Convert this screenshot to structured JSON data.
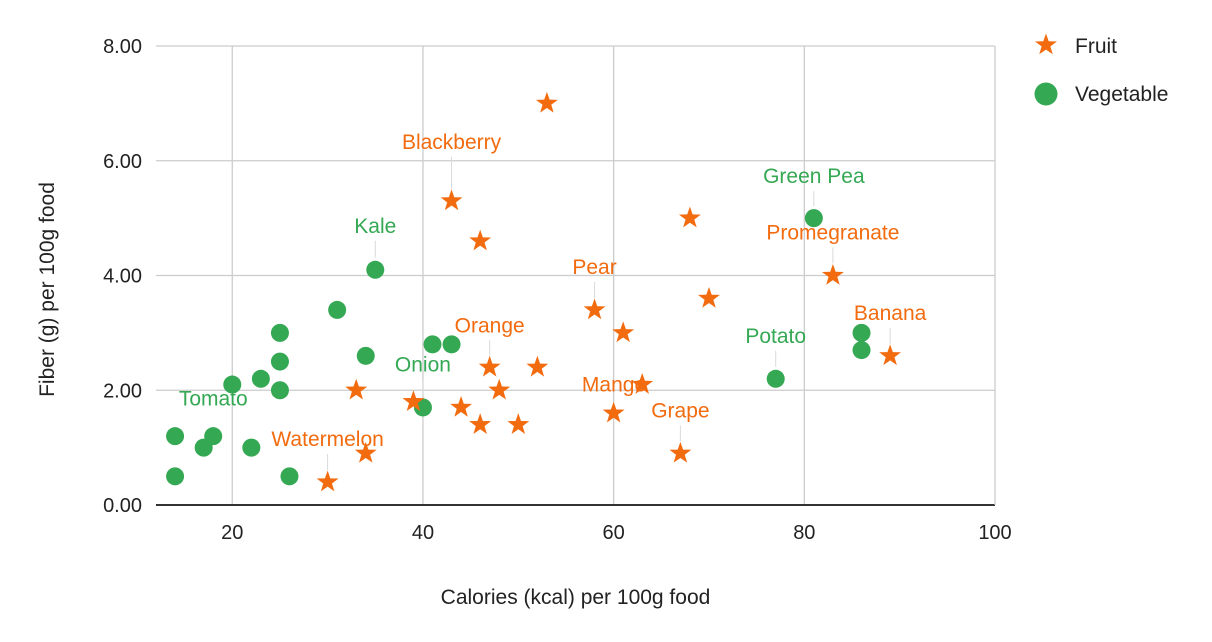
{
  "chart_data": {
    "type": "scatter",
    "title": "",
    "xlabel": "Calories (kcal) per 100g food",
    "ylabel": "Fiber (g) per 100g food",
    "xlim": [
      12,
      100
    ],
    "ylim": [
      0,
      8
    ],
    "xticks": [
      20,
      40,
      60,
      80,
      100
    ],
    "yticks": [
      0,
      2,
      4,
      6,
      8
    ],
    "xtick_labels": [
      "20",
      "40",
      "60",
      "80",
      "100"
    ],
    "ytick_labels": [
      "0.00",
      "2.00",
      "4.00",
      "6.00",
      "8.00"
    ],
    "grid": true,
    "legend_position": "right",
    "series": [
      {
        "name": "Fruit",
        "marker": "star",
        "color": "#f26b0f",
        "points": [
          {
            "x": 30,
            "y": 0.4
          },
          {
            "x": 33,
            "y": 2.0
          },
          {
            "x": 34,
            "y": 0.9
          },
          {
            "x": 39,
            "y": 1.8
          },
          {
            "x": 43,
            "y": 5.3
          },
          {
            "x": 44,
            "y": 1.7
          },
          {
            "x": 46,
            "y": 1.4
          },
          {
            "x": 46,
            "y": 4.6
          },
          {
            "x": 47,
            "y": 2.4
          },
          {
            "x": 48,
            "y": 2.0
          },
          {
            "x": 50,
            "y": 1.4
          },
          {
            "x": 52,
            "y": 2.4
          },
          {
            "x": 53,
            "y": 7.0
          },
          {
            "x": 58,
            "y": 3.4
          },
          {
            "x": 60,
            "y": 1.6
          },
          {
            "x": 61,
            "y": 3.0
          },
          {
            "x": 63,
            "y": 2.1
          },
          {
            "x": 67,
            "y": 0.9
          },
          {
            "x": 68,
            "y": 5.0
          },
          {
            "x": 70,
            "y": 3.6
          },
          {
            "x": 83,
            "y": 4.0
          },
          {
            "x": 89,
            "y": 2.6
          }
        ]
      },
      {
        "name": "Vegetable",
        "marker": "circle",
        "color": "#34a853",
        "points": [
          {
            "x": 14,
            "y": 0.5
          },
          {
            "x": 14,
            "y": 1.2
          },
          {
            "x": 17,
            "y": 1.0
          },
          {
            "x": 18,
            "y": 1.2
          },
          {
            "x": 20,
            "y": 2.1
          },
          {
            "x": 22,
            "y": 1.0
          },
          {
            "x": 23,
            "y": 2.2
          },
          {
            "x": 25,
            "y": 2.0
          },
          {
            "x": 25,
            "y": 2.5
          },
          {
            "x": 25,
            "y": 3.0
          },
          {
            "x": 26,
            "y": 0.5
          },
          {
            "x": 31,
            "y": 3.4
          },
          {
            "x": 34,
            "y": 2.6
          },
          {
            "x": 35,
            "y": 4.1
          },
          {
            "x": 40,
            "y": 1.7
          },
          {
            "x": 41,
            "y": 2.8
          },
          {
            "x": 43,
            "y": 2.8
          },
          {
            "x": 77,
            "y": 2.2
          },
          {
            "x": 81,
            "y": 5.0
          },
          {
            "x": 86,
            "y": 2.7
          },
          {
            "x": 86,
            "y": 3.0
          }
        ]
      }
    ],
    "annotations": [
      {
        "text": "Blackberry",
        "series": "Fruit",
        "x": 43,
        "y": 5.3
      },
      {
        "text": "Kale",
        "series": "Vegetable",
        "x": 35,
        "y": 4.1
      },
      {
        "text": "Green Pea",
        "series": "Vegetable",
        "x": 81,
        "y": 5.0
      },
      {
        "text": "Promegranate",
        "series": "Fruit",
        "x": 83,
        "y": 4.0
      },
      {
        "text": "Pear",
        "series": "Fruit",
        "x": 58,
        "y": 3.4
      },
      {
        "text": "Orange",
        "series": "Fruit",
        "x": 47,
        "y": 2.4
      },
      {
        "text": "Banana",
        "series": "Fruit",
        "x": 89,
        "y": 2.6
      },
      {
        "text": "Potato",
        "series": "Vegetable",
        "x": 77,
        "y": 2.2
      },
      {
        "text": "Onion",
        "series": "Vegetable",
        "x": 40,
        "y": 1.7
      },
      {
        "text": "Mango",
        "series": "Fruit",
        "x": 57,
        "y": 2.4
      },
      {
        "text": "Tomato",
        "series": "Vegetable",
        "x": 20,
        "y": 2.1
      },
      {
        "text": "Grape",
        "series": "Fruit",
        "x": 67,
        "y": 0.9
      },
      {
        "text": "Watermelon",
        "series": "Fruit",
        "x": 30,
        "y": 0.4
      }
    ]
  }
}
